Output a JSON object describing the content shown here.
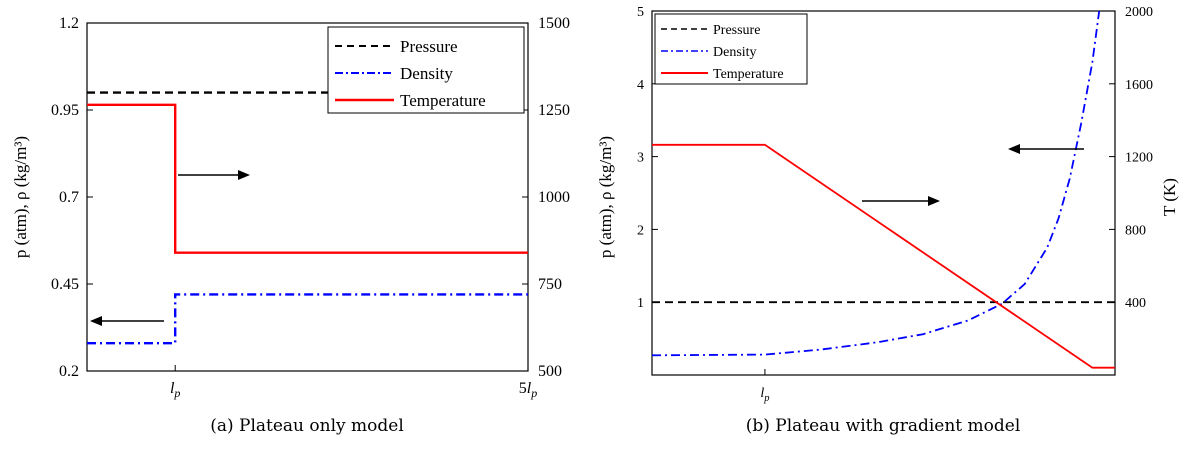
{
  "colors": {
    "pressure": "#000000",
    "density": "#0000ff",
    "temperature": "#ff0000",
    "axes": "#000000",
    "background": "#ffffff"
  },
  "chart_data": [
    {
      "type": "line",
      "caption": "(a) Plateau only model",
      "ylabel_left": "p (atm), ρ (kg/m³)",
      "ylabel_right": "",
      "x_tick_labels": [
        "lp",
        "5lp"
      ],
      "x_tick_values": [
        1,
        5
      ],
      "xlim": [
        0,
        5
      ],
      "ylim_left": [
        0.2,
        1.2
      ],
      "ylim_right": [
        500,
        1500
      ],
      "yticks_left": [
        "0.2",
        "0.45",
        "0.7",
        "0.95",
        "1.2"
      ],
      "yticks_right": [
        "500",
        "750",
        "1000",
        "1250",
        "1500"
      ],
      "legend": {
        "entries": [
          "Pressure",
          "Density",
          "Temperature"
        ],
        "placement": "top-right"
      },
      "series": [
        {
          "name": "Pressure",
          "axis": "left",
          "style": "dashed",
          "x": [
            0,
            5
          ],
          "y": [
            1.0,
            1.0
          ]
        },
        {
          "name": "Density",
          "axis": "left",
          "style": "dashdot",
          "x": [
            0,
            1,
            1,
            5
          ],
          "y": [
            0.28,
            0.28,
            0.42,
            0.42
          ]
        },
        {
          "name": "Temperature",
          "axis": "right",
          "style": "solid",
          "x": [
            0,
            1,
            1,
            5
          ],
          "y": [
            1265,
            1265,
            840,
            840
          ]
        }
      ],
      "annotations": [
        {
          "type": "arrow",
          "direction": "right",
          "meaning": "temperature → right axis"
        },
        {
          "type": "arrow",
          "direction": "left",
          "meaning": "density → left axis"
        }
      ]
    },
    {
      "type": "line",
      "caption": "(b) Plateau with gradient model",
      "ylabel_left": "p (atm), ρ (kg/m³)",
      "ylabel_right": "T (K)",
      "x_tick_labels": [
        "lp"
      ],
      "x_tick_values": [
        1
      ],
      "xlim": [
        0,
        4.1
      ],
      "ylim_left": [
        0,
        5
      ],
      "ylim_right": [
        0,
        2000
      ],
      "yticks_left": [
        "1",
        "2",
        "3",
        "4",
        "5"
      ],
      "yticks_right": [
        "400",
        "800",
        "1200",
        "1600",
        "2000"
      ],
      "legend": {
        "entries": [
          "Pressure",
          "Density",
          "Temperature"
        ],
        "placement": "top-left"
      },
      "series": [
        {
          "name": "Pressure",
          "axis": "left",
          "style": "dashed",
          "x": [
            0,
            4.1
          ],
          "y": [
            1.0,
            1.0
          ]
        },
        {
          "name": "Density",
          "axis": "left",
          "style": "dashdot",
          "x": [
            0,
            1,
            1.5,
            2.0,
            2.4,
            2.8,
            3.1,
            3.3,
            3.5,
            3.6,
            3.7,
            3.8,
            3.9,
            3.96
          ],
          "y": [
            0.27,
            0.28,
            0.35,
            0.45,
            0.56,
            0.75,
            0.98,
            1.25,
            1.75,
            2.15,
            2.7,
            3.45,
            4.3,
            5.0
          ]
        },
        {
          "name": "Temperature",
          "axis": "right",
          "style": "solid",
          "x": [
            0,
            1,
            3.9,
            4.1
          ],
          "y": [
            1265,
            1265,
            40,
            40
          ]
        }
      ],
      "annotations": [
        {
          "type": "arrow",
          "direction": "right",
          "meaning": "temperature → right axis"
        },
        {
          "type": "arrow",
          "direction": "left",
          "meaning": "density → left axis"
        }
      ]
    }
  ]
}
